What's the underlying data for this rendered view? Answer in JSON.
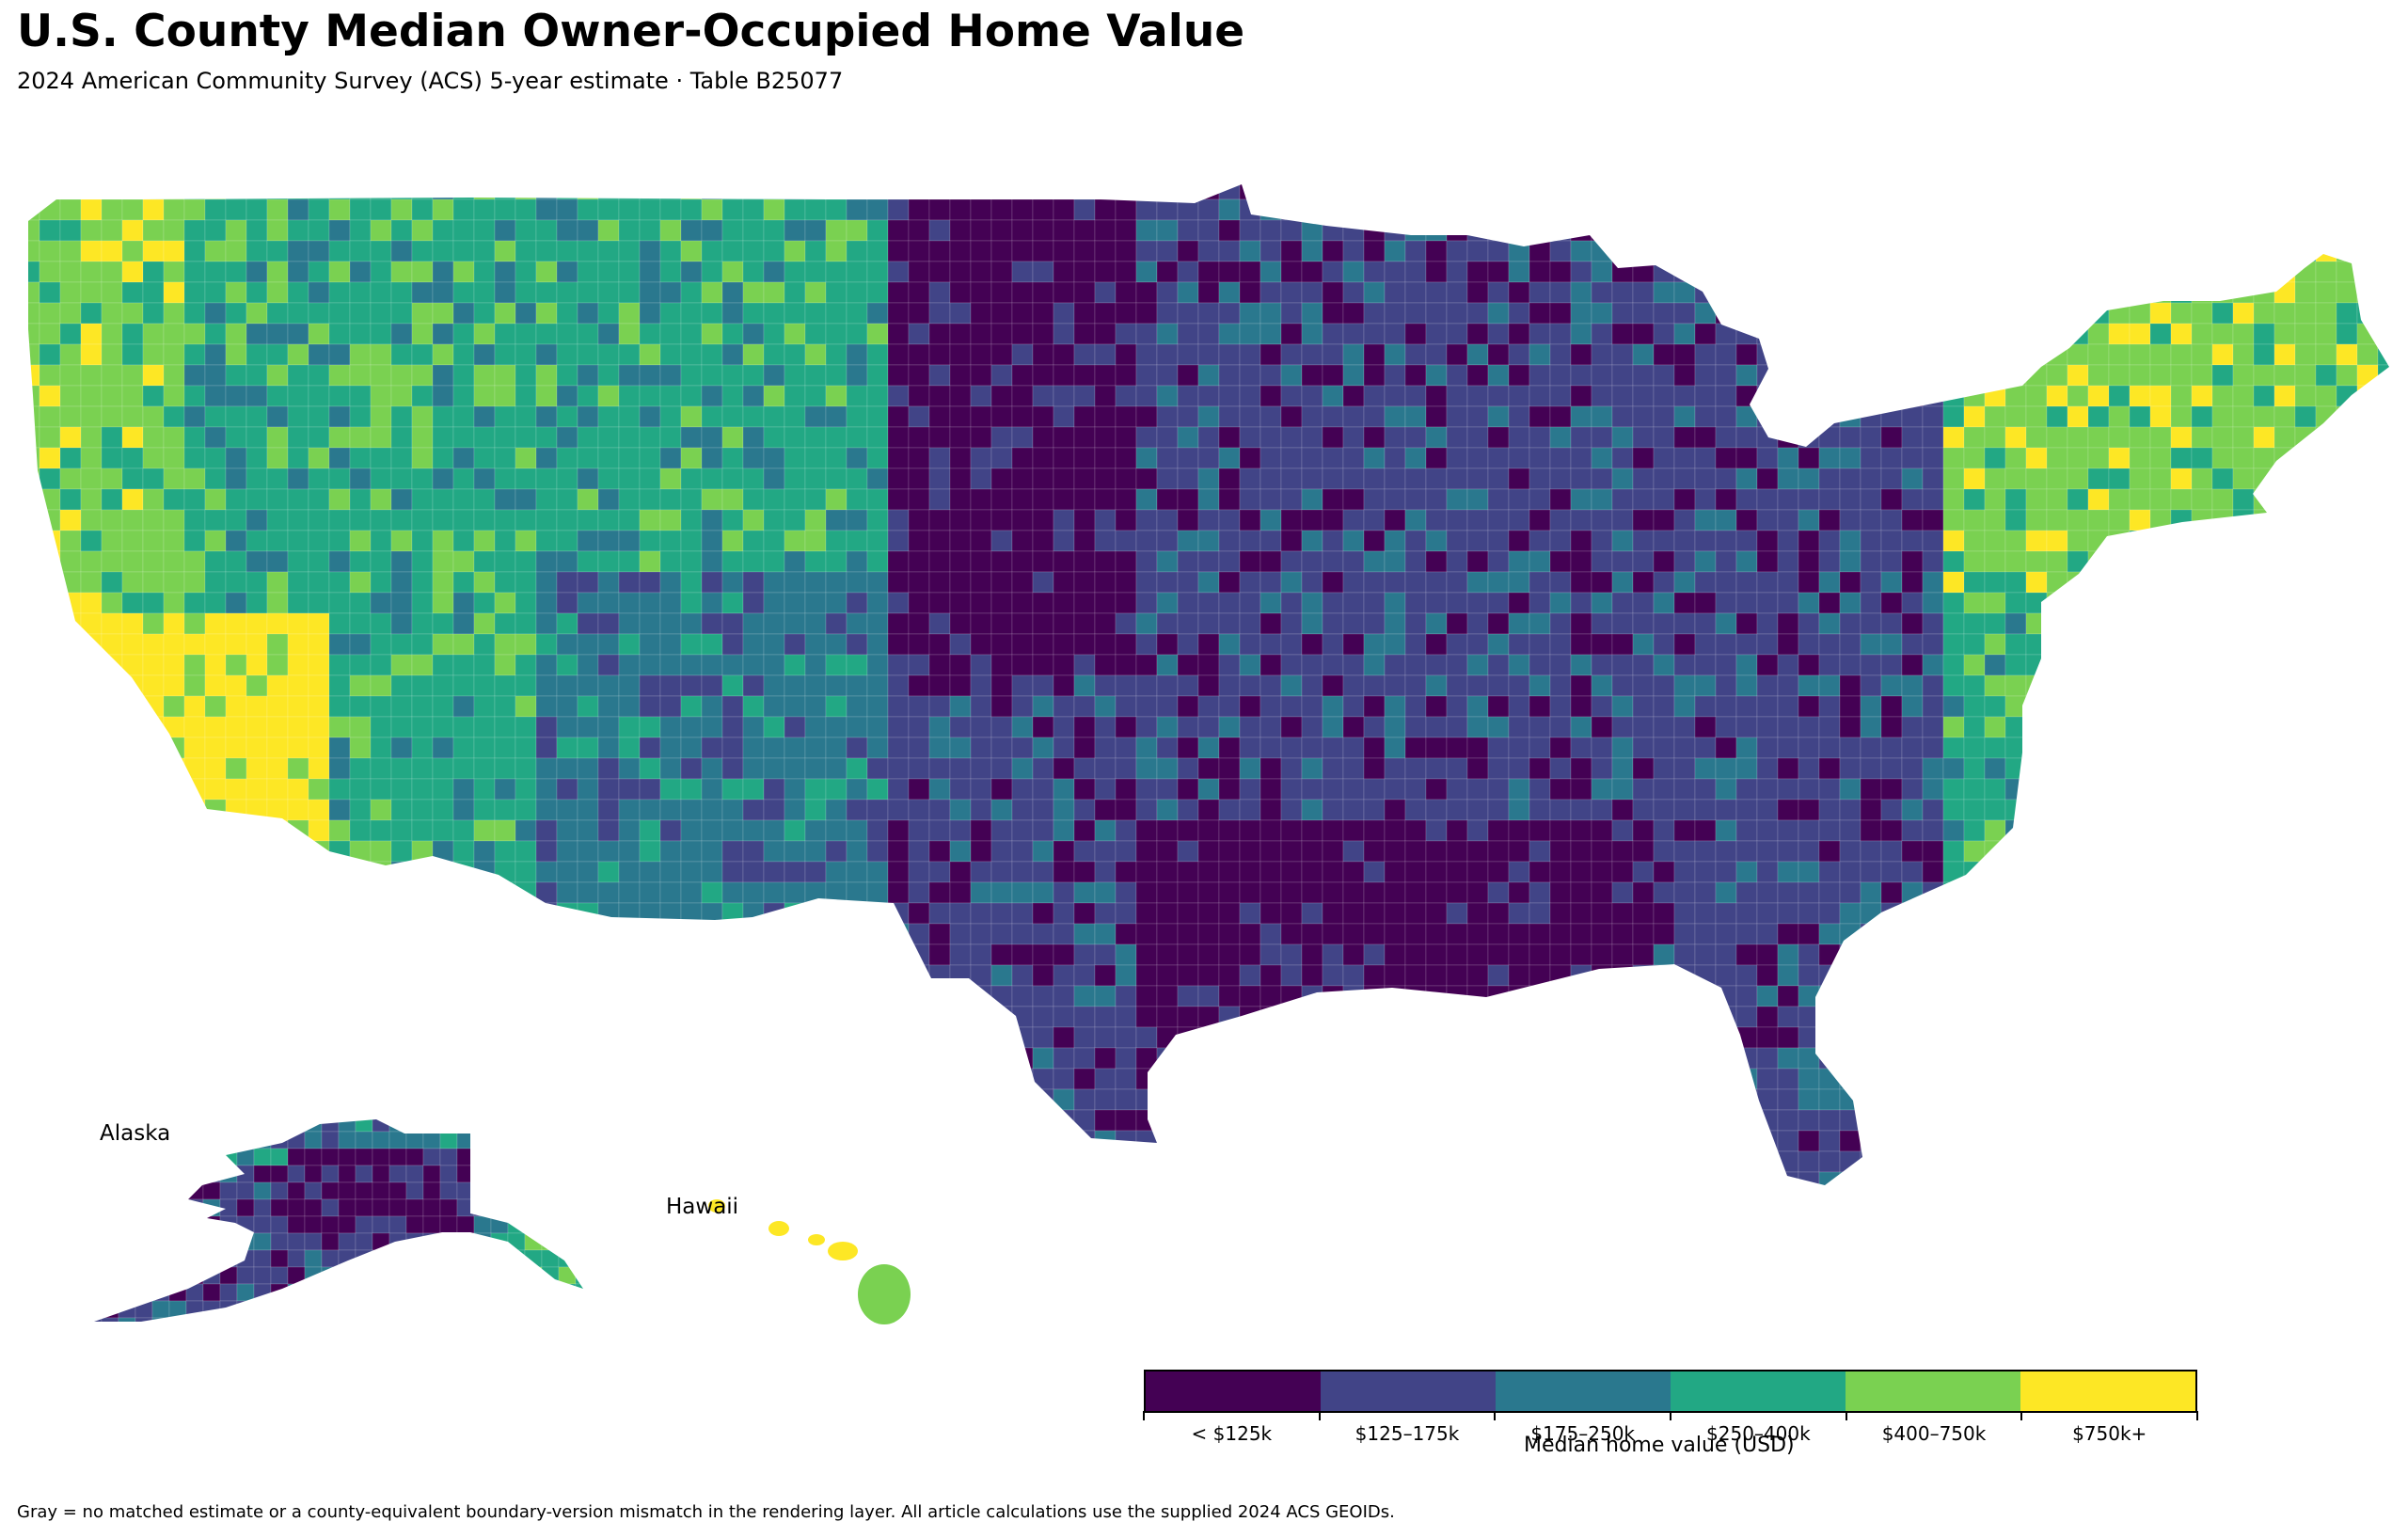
{
  "title": "U.S. County Median Owner-Occupied Home Value",
  "subtitle": "2024 American Community Survey (ACS) 5-year estimate · Table B25077",
  "insets": {
    "alaska_label": "Alaska",
    "hawaii_label": "Hawaii"
  },
  "legend": {
    "title": "Median home value (USD)",
    "bins": [
      {
        "label": "< $125k",
        "color": "#440154"
      },
      {
        "label": "$125–175k",
        "color": "#414487"
      },
      {
        "label": "$175–250k",
        "color": "#2a788e"
      },
      {
        "label": "$250–400k",
        "color": "#22a884"
      },
      {
        "label": "$400–750k",
        "color": "#7ad151"
      },
      {
        "label": "$750k+",
        "color": "#fde725"
      }
    ],
    "no_data_color": "#d9d9d9"
  },
  "footnote": "Gray = no matched estimate or a county-equivalent boundary-version mismatch in the rendering layer. All article calculations use the supplied 2024 ACS GEOIDs."
}
